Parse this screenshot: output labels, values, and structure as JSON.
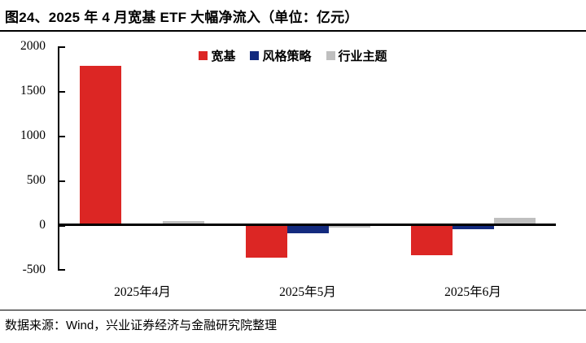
{
  "header": {
    "title": "图24、2025 年 4 月宽基 ETF 大幅净流入（单位：亿元）"
  },
  "chart_data": {
    "type": "bar",
    "title": "2025 年 4 月宽基 ETF 大幅净流入",
    "unit": "亿元",
    "categories": [
      "2025年4月",
      "2025年5月",
      "2025年6月"
    ],
    "series": [
      {
        "name": "宽基",
        "color": "#DC2624",
        "values": [
          1780,
          -360,
          -340
        ]
      },
      {
        "name": "风格策略",
        "color": "#132A7E",
        "values": [
          10,
          -95,
          -45
        ]
      },
      {
        "name": "行业主题",
        "color": "#BFBFBF",
        "values": [
          45,
          -25,
          80
        ]
      }
    ],
    "ylim": [
      -500,
      2000
    ],
    "ytick_interval": 500,
    "ytick_labels": [
      "2000",
      "1500",
      "1000",
      "500",
      "0",
      "-500"
    ],
    "grid": false,
    "legend_position": "top",
    "axis_color": "#000000"
  },
  "footer": {
    "source": "数据来源：Wind，兴业证券经济与金融研究院整理"
  }
}
